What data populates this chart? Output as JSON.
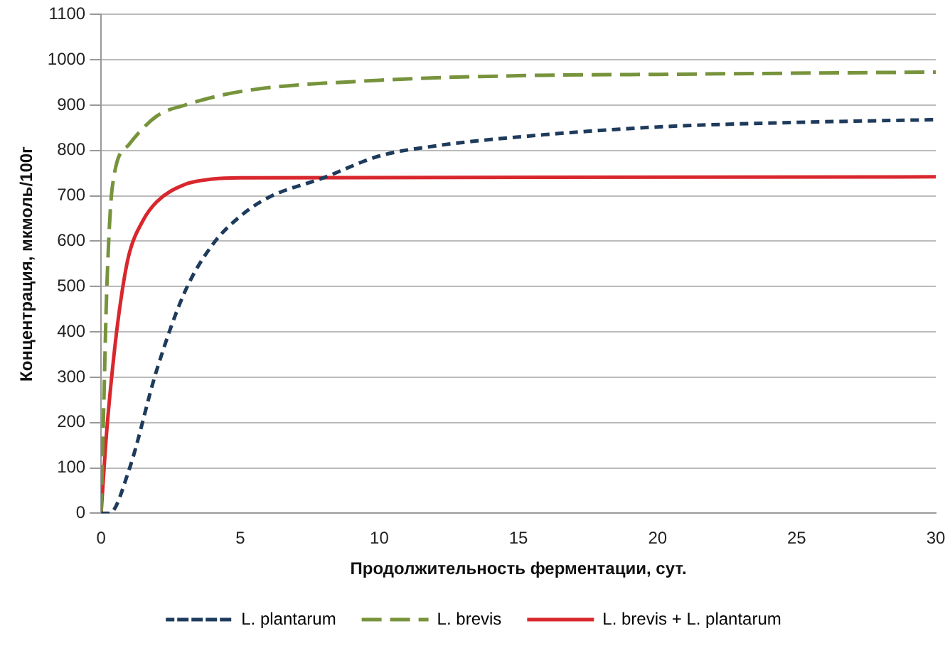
{
  "chart_data": {
    "type": "line",
    "xlabel": "Продолжительность ферментации, сут.",
    "ylabel": "Концентрация, мкмоль/100г",
    "xlim": [
      0,
      30
    ],
    "xticks": [
      0,
      5,
      10,
      15,
      20,
      25,
      30
    ],
    "ylim": [
      0,
      1100
    ],
    "yticks": [
      0,
      100,
      200,
      300,
      400,
      500,
      600,
      700,
      800,
      900,
      1000,
      1100
    ],
    "grid": "y",
    "legend": "bottom",
    "marker": "none",
    "series": [
      {
        "name": "L. plantarum",
        "color": "#1f3b5c",
        "line_style": "dashed",
        "x": [
          0,
          0.3,
          1,
          2,
          3,
          4,
          5,
          6,
          8,
          10,
          12,
          15,
          20,
          25,
          30
        ],
        "values": [
          0,
          0,
          95,
          316,
          487,
          592,
          655,
          696,
          740,
          788,
          810,
          830,
          852,
          862,
          868
        ]
      },
      {
        "name": "L. brevis",
        "color": "#77933c",
        "line_style": "dashed",
        "x": [
          0,
          0.1,
          0.2,
          0.4,
          1,
          2,
          3,
          5,
          10,
          15,
          20,
          30
        ],
        "values": [
          0,
          250,
          487,
          718,
          813,
          876,
          900,
          930,
          955,
          965,
          968,
          973
        ]
      },
      {
        "name": "L. brevis + L. plantarum",
        "color": "#d9272e",
        "line_style": "solid",
        "x": [
          0,
          0.2,
          0.5,
          0.75,
          1,
          1.5,
          2,
          3,
          4,
          5,
          30
        ],
        "values": [
          0,
          180,
          370,
          487,
          570,
          645,
          687,
          725,
          737,
          740,
          742
        ]
      }
    ]
  }
}
